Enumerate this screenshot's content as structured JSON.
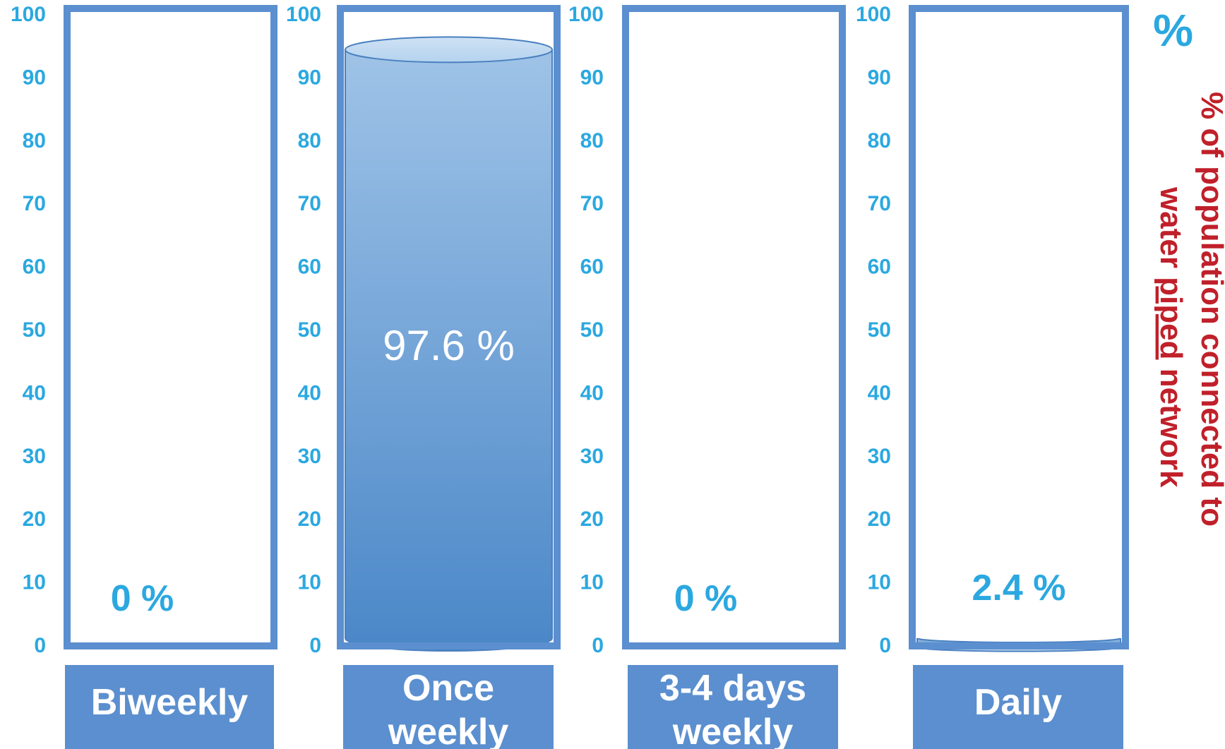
{
  "chart_data": {
    "type": "bar",
    "categories": [
      "Biweekly",
      "Once weekly",
      "3-4 days weekly",
      "Daily"
    ],
    "category_lines": [
      [
        "Biweekly"
      ],
      [
        "Once",
        "weekly"
      ],
      [
        "3-4 days",
        "weekly"
      ],
      [
        "Daily"
      ]
    ],
    "values": [
      0,
      97.6,
      0,
      2.4
    ],
    "value_labels": [
      "0 %",
      "97.6 %",
      "0 %",
      "2.4 %"
    ],
    "unit_label": "%",
    "ylabel": "% of population connected to water piped network",
    "ylabel_parts": {
      "before": "% of population connected to",
      "line2_a": "water ",
      "underlined": "piped",
      "line2_b": " network"
    },
    "ylim": [
      0,
      100
    ],
    "yticks": [
      "0",
      "10",
      "20",
      "30",
      "40",
      "50",
      "60",
      "70",
      "80",
      "90",
      "100"
    ],
    "grid": false,
    "colors": {
      "frame": "#5b8fcf",
      "tick_text": "#2ba8e0",
      "value_text": "#2ba8e0",
      "category_box": "#5b8fcf",
      "category_text": "#ffffff",
      "ylabel_text": "#c0202a",
      "fill_top": "#9fc3e7",
      "fill_bottom": "#4a87c8"
    }
  }
}
